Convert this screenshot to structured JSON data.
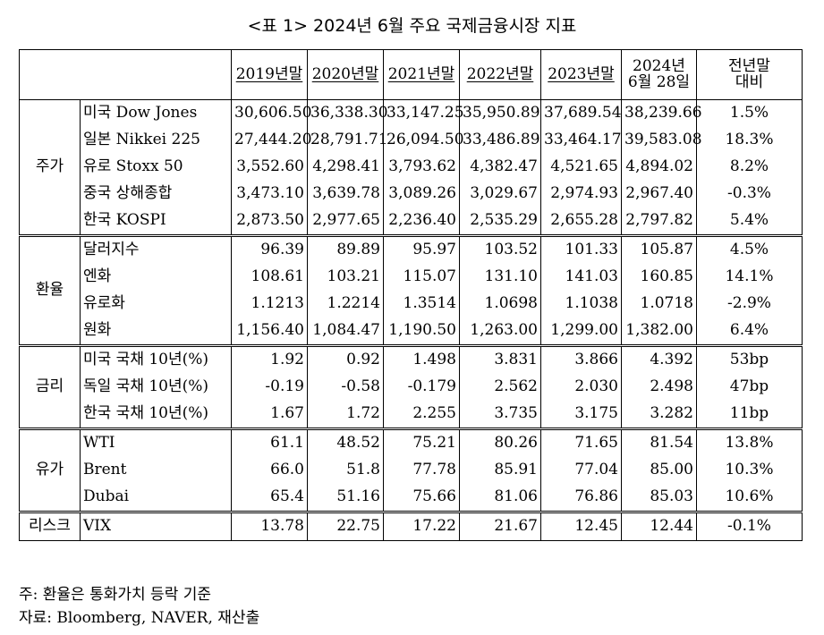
{
  "caption": "<표 1> 2024년 6월 주요 국제금융시장 지표",
  "headers": [
    "2019년말",
    "2020년말",
    "2021년말",
    "2022년말",
    "2023년말",
    "2024년\n6월 28일",
    "전년말\n대비"
  ],
  "groups": [
    {
      "name": "주가",
      "rows": [
        {
          "item": "미국 Dow Jones",
          "values": [
            "30,606.50",
            "36,338.30",
            "33,147.25",
            "35,950.89",
            "37,689.54",
            "38,239.66"
          ],
          "change": "1.5%"
        },
        {
          "item": "일본 Nikkei 225",
          "values": [
            "27,444.20",
            "28,791.71",
            "26,094.50",
            "33,486.89",
            "33,464.17",
            "39,583.08"
          ],
          "change": "18.3%"
        },
        {
          "item": "유로 Stoxx 50",
          "values": [
            "3,552.60",
            "4,298.41",
            "3,793.62",
            "4,382.47",
            "4,521.65",
            "4,894.02"
          ],
          "change": "8.2%"
        },
        {
          "item": "중국 상해종합",
          "values": [
            "3,473.10",
            "3,639.78",
            "3,089.26",
            "3,029.67",
            "2,974.93",
            "2,967.40"
          ],
          "change": "-0.3%"
        },
        {
          "item": "한국 KOSPI",
          "values": [
            "2,873.50",
            "2,977.65",
            "2,236.40",
            "2,535.29",
            "2,655.28",
            "2,797.82"
          ],
          "change": "5.4%"
        }
      ]
    },
    {
      "name": "환율",
      "rows": [
        {
          "item": "달러지수",
          "values": [
            "96.39",
            "89.89",
            "95.97",
            "103.52",
            "101.33",
            "105.87"
          ],
          "change": "4.5%"
        },
        {
          "item": "엔화",
          "values": [
            "108.61",
            "103.21",
            "115.07",
            "131.10",
            "141.03",
            "160.85"
          ],
          "change": "14.1%"
        },
        {
          "item": "유로화",
          "values": [
            "1.1213",
            "1.2214",
            "1.3514",
            "1.0698",
            "1.1038",
            "1.0718"
          ],
          "change": "-2.9%"
        },
        {
          "item": "원화",
          "values": [
            "1,156.40",
            "1,084.47",
            "1,190.50",
            "1,263.00",
            "1,299.00",
            "1,382.00"
          ],
          "change": "6.4%"
        }
      ]
    },
    {
      "name": "금리",
      "rows": [
        {
          "item": "미국 국채 10년(%)",
          "values": [
            "1.92",
            "0.92",
            "1.498",
            "3.831",
            "3.866",
            "4.392"
          ],
          "change": "53bp"
        },
        {
          "item": "독일 국채 10년(%)",
          "values": [
            "-0.19",
            "-0.58",
            "-0.179",
            "2.562",
            "2.030",
            "2.498"
          ],
          "change": "47bp"
        },
        {
          "item": "한국 국채 10년(%)",
          "values": [
            "1.67",
            "1.72",
            "2.255",
            "3.735",
            "3.175",
            "3.282"
          ],
          "change": "11bp"
        }
      ]
    },
    {
      "name": "유가",
      "rows": [
        {
          "item": "WTI",
          "values": [
            "61.1",
            "48.52",
            "75.21",
            "80.26",
            "71.65",
            "81.54"
          ],
          "change": "13.8%"
        },
        {
          "item": "Brent",
          "values": [
            "66.0",
            "51.8",
            "77.78",
            "85.91",
            "77.04",
            "85.00"
          ],
          "change": "10.3%"
        },
        {
          "item": "Dubai",
          "values": [
            "65.4",
            "51.16",
            "75.66",
            "81.06",
            "76.86",
            "85.03"
          ],
          "change": "10.6%"
        }
      ]
    },
    {
      "name": "리스크",
      "rows": [
        {
          "item": "VIX",
          "values": [
            "13.78",
            "22.75",
            "17.22",
            "21.67",
            "12.45",
            "12.44"
          ],
          "change": "-0.1%"
        }
      ]
    }
  ],
  "notes": [
    "주: 환율은 통화가치 등락 기준",
    "자료: Bloomberg, NAVER, 재산출"
  ]
}
